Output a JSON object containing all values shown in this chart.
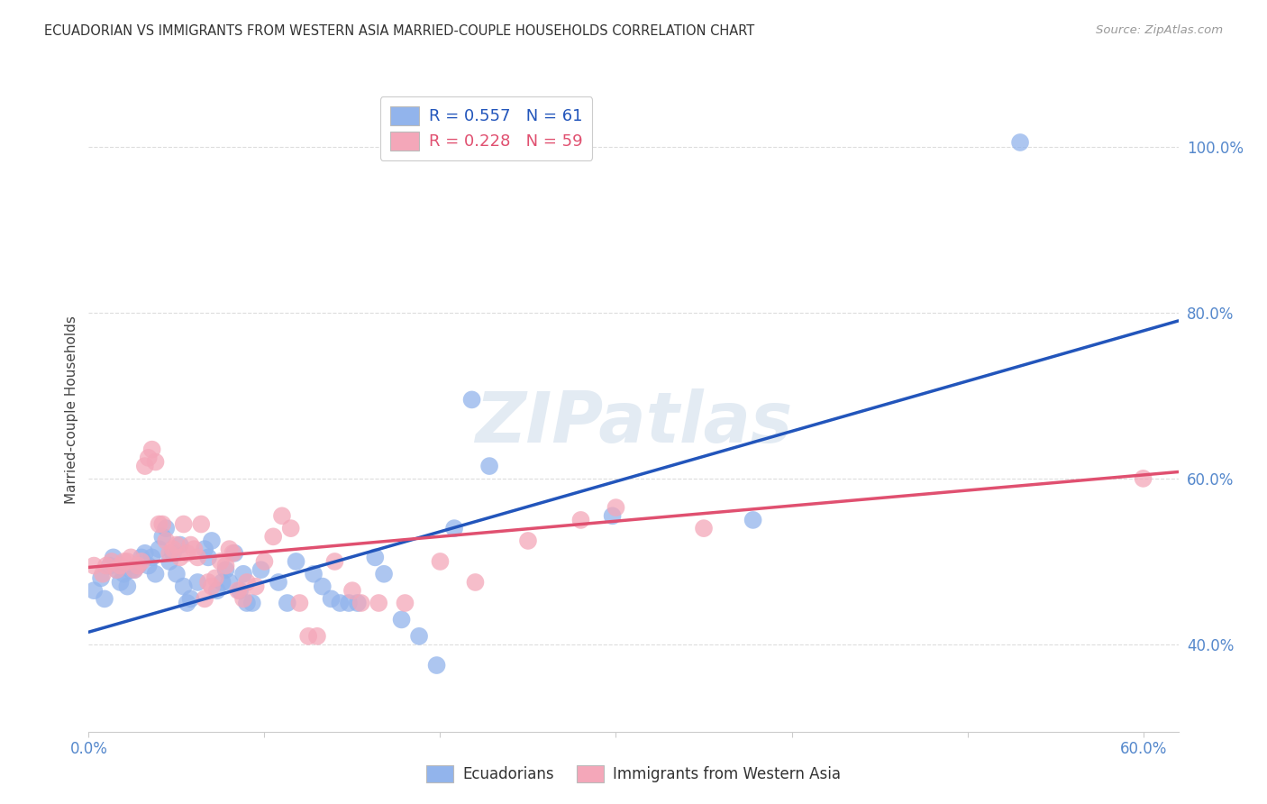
{
  "title": "ECUADORIAN VS IMMIGRANTS FROM WESTERN ASIA MARRIED-COUPLE HOUSEHOLDS CORRELATION CHART",
  "source": "Source: ZipAtlas.com",
  "ylabel": "Married-couple Households",
  "ytick_labels": [
    "40.0%",
    "60.0%",
    "80.0%",
    "100.0%"
  ],
  "ytick_values": [
    0.4,
    0.6,
    0.8,
    1.0
  ],
  "xlim": [
    0.0,
    0.62
  ],
  "ylim": [
    0.295,
    1.07
  ],
  "color_blue": "#92B4EC",
  "color_pink": "#F4A7B9",
  "trendline_blue": "#2255BB",
  "trendline_pink": "#E05070",
  "blue_scatter": [
    [
      0.003,
      0.465
    ],
    [
      0.007,
      0.48
    ],
    [
      0.009,
      0.455
    ],
    [
      0.012,
      0.495
    ],
    [
      0.014,
      0.505
    ],
    [
      0.016,
      0.49
    ],
    [
      0.018,
      0.475
    ],
    [
      0.02,
      0.485
    ],
    [
      0.022,
      0.47
    ],
    [
      0.024,
      0.49
    ],
    [
      0.026,
      0.49
    ],
    [
      0.028,
      0.495
    ],
    [
      0.03,
      0.505
    ],
    [
      0.032,
      0.51
    ],
    [
      0.034,
      0.495
    ],
    [
      0.036,
      0.505
    ],
    [
      0.038,
      0.485
    ],
    [
      0.04,
      0.515
    ],
    [
      0.042,
      0.53
    ],
    [
      0.044,
      0.54
    ],
    [
      0.046,
      0.5
    ],
    [
      0.048,
      0.51
    ],
    [
      0.05,
      0.485
    ],
    [
      0.052,
      0.52
    ],
    [
      0.054,
      0.47
    ],
    [
      0.056,
      0.45
    ],
    [
      0.058,
      0.455
    ],
    [
      0.062,
      0.475
    ],
    [
      0.066,
      0.515
    ],
    [
      0.068,
      0.505
    ],
    [
      0.07,
      0.525
    ],
    [
      0.073,
      0.465
    ],
    [
      0.076,
      0.475
    ],
    [
      0.078,
      0.49
    ],
    [
      0.08,
      0.475
    ],
    [
      0.083,
      0.51
    ],
    [
      0.086,
      0.465
    ],
    [
      0.088,
      0.485
    ],
    [
      0.09,
      0.45
    ],
    [
      0.093,
      0.45
    ],
    [
      0.098,
      0.49
    ],
    [
      0.108,
      0.475
    ],
    [
      0.113,
      0.45
    ],
    [
      0.118,
      0.5
    ],
    [
      0.128,
      0.485
    ],
    [
      0.133,
      0.47
    ],
    [
      0.138,
      0.455
    ],
    [
      0.143,
      0.45
    ],
    [
      0.148,
      0.45
    ],
    [
      0.153,
      0.45
    ],
    [
      0.163,
      0.505
    ],
    [
      0.168,
      0.485
    ],
    [
      0.178,
      0.43
    ],
    [
      0.188,
      0.41
    ],
    [
      0.198,
      0.375
    ],
    [
      0.208,
      0.54
    ],
    [
      0.218,
      0.695
    ],
    [
      0.228,
      0.615
    ],
    [
      0.298,
      0.555
    ],
    [
      0.378,
      0.55
    ],
    [
      0.53,
      1.005
    ]
  ],
  "pink_scatter": [
    [
      0.003,
      0.495
    ],
    [
      0.008,
      0.485
    ],
    [
      0.01,
      0.495
    ],
    [
      0.013,
      0.5
    ],
    [
      0.016,
      0.49
    ],
    [
      0.018,
      0.495
    ],
    [
      0.02,
      0.5
    ],
    [
      0.022,
      0.5
    ],
    [
      0.024,
      0.505
    ],
    [
      0.026,
      0.49
    ],
    [
      0.028,
      0.495
    ],
    [
      0.03,
      0.5
    ],
    [
      0.032,
      0.615
    ],
    [
      0.034,
      0.625
    ],
    [
      0.036,
      0.635
    ],
    [
      0.038,
      0.62
    ],
    [
      0.04,
      0.545
    ],
    [
      0.042,
      0.545
    ],
    [
      0.044,
      0.525
    ],
    [
      0.046,
      0.51
    ],
    [
      0.048,
      0.515
    ],
    [
      0.05,
      0.52
    ],
    [
      0.052,
      0.505
    ],
    [
      0.054,
      0.545
    ],
    [
      0.056,
      0.51
    ],
    [
      0.058,
      0.52
    ],
    [
      0.06,
      0.515
    ],
    [
      0.062,
      0.505
    ],
    [
      0.064,
      0.545
    ],
    [
      0.066,
      0.455
    ],
    [
      0.068,
      0.475
    ],
    [
      0.07,
      0.47
    ],
    [
      0.072,
      0.48
    ],
    [
      0.075,
      0.5
    ],
    [
      0.078,
      0.495
    ],
    [
      0.08,
      0.515
    ],
    [
      0.082,
      0.51
    ],
    [
      0.085,
      0.465
    ],
    [
      0.088,
      0.455
    ],
    [
      0.09,
      0.475
    ],
    [
      0.095,
      0.47
    ],
    [
      0.1,
      0.5
    ],
    [
      0.105,
      0.53
    ],
    [
      0.11,
      0.555
    ],
    [
      0.115,
      0.54
    ],
    [
      0.12,
      0.45
    ],
    [
      0.125,
      0.41
    ],
    [
      0.13,
      0.41
    ],
    [
      0.14,
      0.5
    ],
    [
      0.15,
      0.465
    ],
    [
      0.155,
      0.45
    ],
    [
      0.165,
      0.45
    ],
    [
      0.18,
      0.45
    ],
    [
      0.2,
      0.5
    ],
    [
      0.22,
      0.475
    ],
    [
      0.25,
      0.525
    ],
    [
      0.28,
      0.55
    ],
    [
      0.3,
      0.565
    ],
    [
      0.35,
      0.54
    ],
    [
      0.6,
      0.6
    ]
  ],
  "blue_trend_x": [
    0.0,
    0.62
  ],
  "blue_trend_y": [
    0.415,
    0.79
  ],
  "pink_trend_x": [
    0.0,
    0.62
  ],
  "pink_trend_y": [
    0.493,
    0.608
  ],
  "watermark": "ZIPatlas",
  "background_color": "#FFFFFF",
  "grid_color": "#DDDDDD",
  "xtick_positions": [
    0.0,
    0.1,
    0.2,
    0.3,
    0.4,
    0.5,
    0.6
  ],
  "xtick_labels_show": [
    "0.0%",
    "",
    "",
    "",
    "",
    "",
    "60.0%"
  ]
}
